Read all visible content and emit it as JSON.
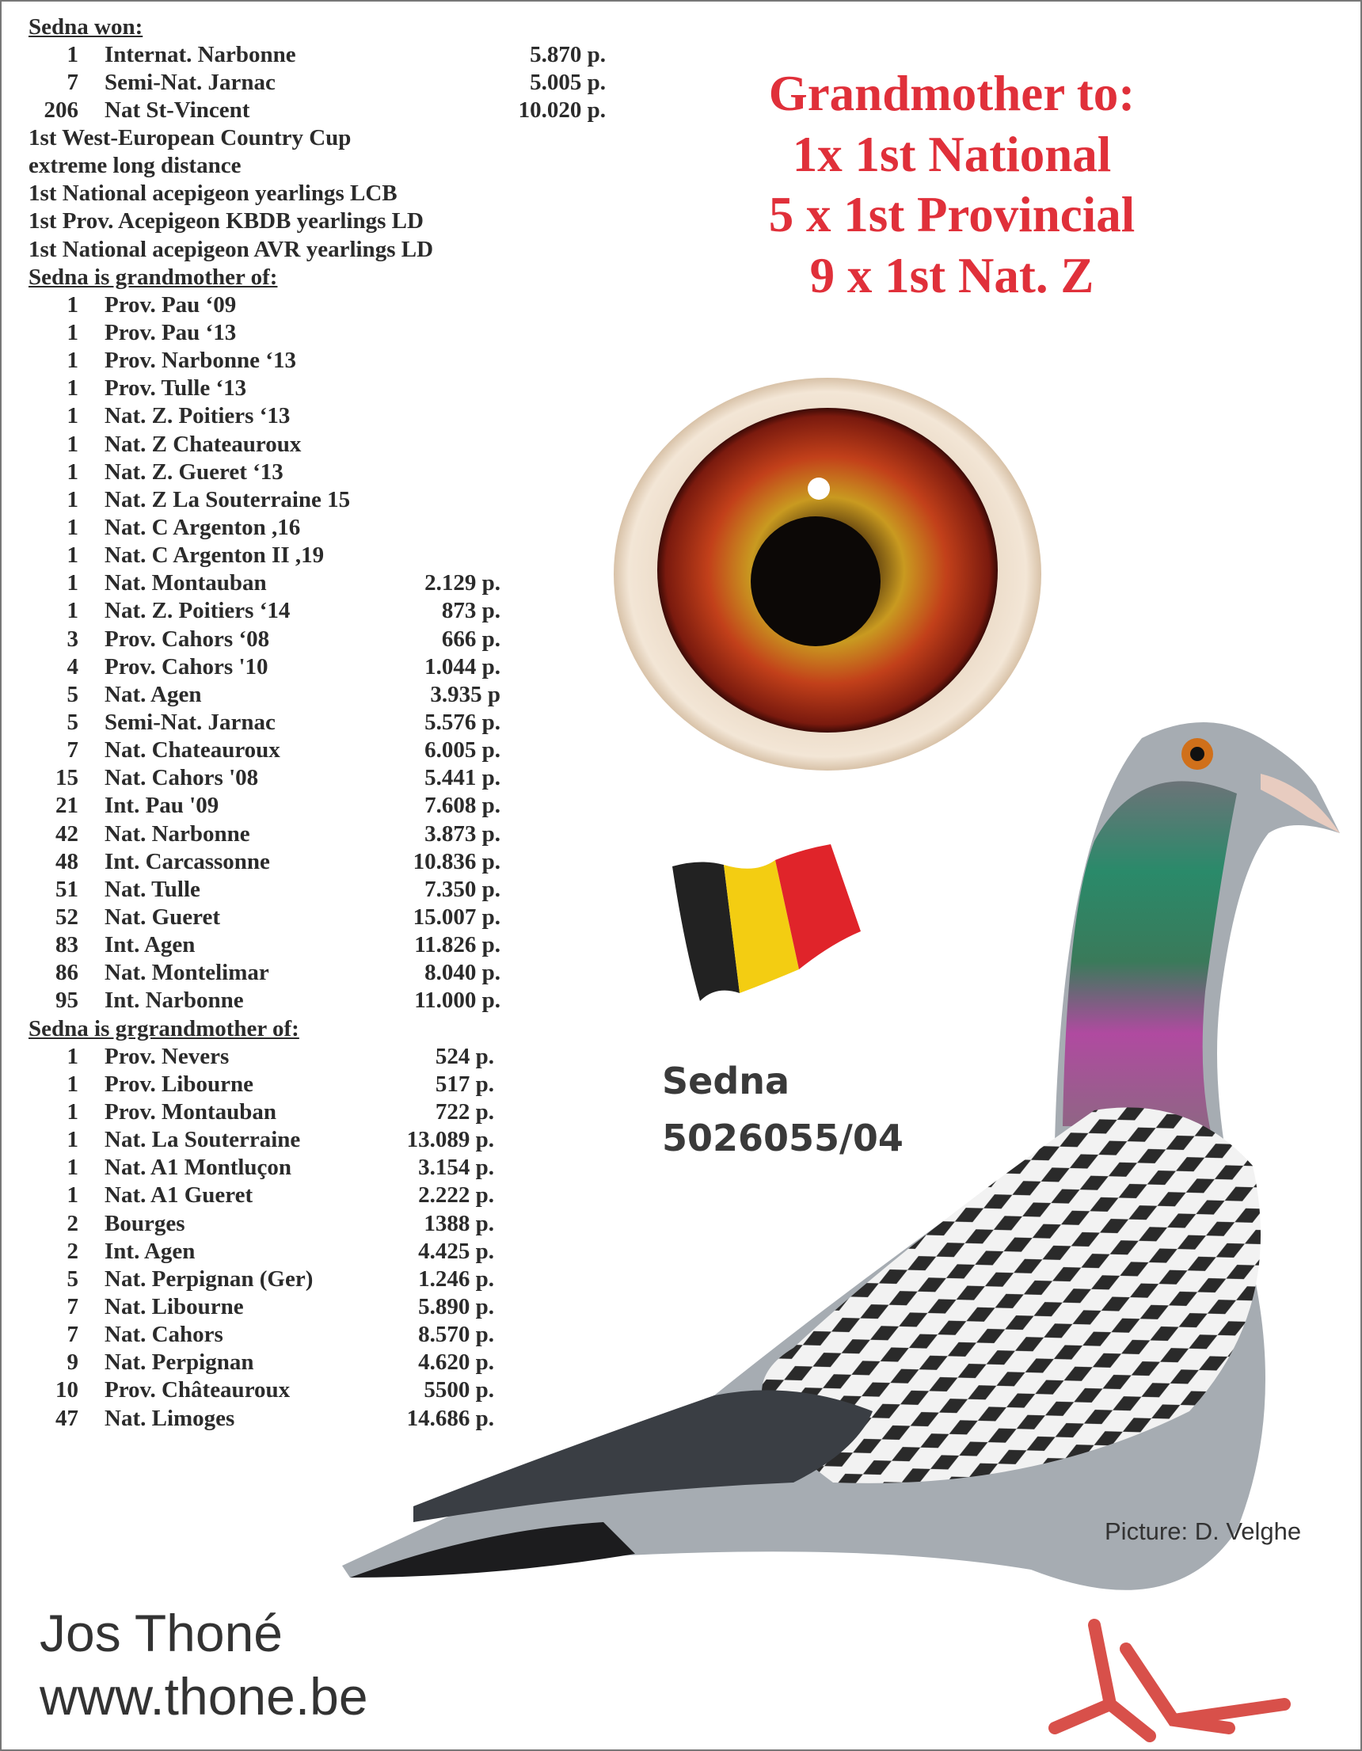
{
  "won": {
    "heading": "Sedna won:",
    "results": [
      {
        "rank": "1",
        "race": "Internat. Narbonne",
        "points": "5.870 p."
      },
      {
        "rank": "7",
        "race": "Semi-Nat. Jarnac",
        "points": "5.005 p."
      },
      {
        "rank": "206",
        "race": "Nat St-Vincent",
        "points": "10.020 p."
      }
    ],
    "titles": [
      "1st West-European Country Cup",
      "extreme long distance",
      "1st National acepigeon yearlings LCB",
      "1st Prov. Acepigeon KBDB yearlings LD",
      "1st National acepigeon AVR  yearlings LD"
    ]
  },
  "grandmother": {
    "heading": "Sedna is grandmother of:",
    "results": [
      {
        "rank": "1",
        "race": "Prov. Pau ‘09",
        "points": ""
      },
      {
        "rank": "1",
        "race": "Prov. Pau ‘13",
        "points": ""
      },
      {
        "rank": "1",
        "race": "Prov. Narbonne ‘13",
        "points": ""
      },
      {
        "rank": "1",
        "race": "Prov. Tulle ‘13",
        "points": ""
      },
      {
        "rank": "1",
        "race": "Nat. Z.  Poitiers ‘13",
        "points": ""
      },
      {
        "rank": "1",
        "race": "Nat. Z Chateauroux",
        "points": ""
      },
      {
        "rank": "1",
        "race": "Nat. Z. Gueret ‘13",
        "points": ""
      },
      {
        "rank": "1",
        "race": "Nat. Z La Souterraine 15",
        "points": ""
      },
      {
        "rank": "1",
        "race": "Nat. C Argenton ,16",
        "points": ""
      },
      {
        "rank": "1",
        "race": "Nat. C Argenton II ,19",
        "points": ""
      },
      {
        "rank": "1",
        "race": "Nat. Montauban",
        "points": "2.129 p."
      },
      {
        "rank": "1",
        "race": "Nat. Z. Poitiers ‘14",
        "points": "873 p."
      },
      {
        "rank": "3",
        "race": "Prov. Cahors ‘08",
        "points": "666 p."
      },
      {
        "rank": "4",
        "race": "Prov. Cahors '10",
        "points": "1.044 p."
      },
      {
        "rank": "5",
        "race": "Nat. Agen",
        "points": "3.935 p"
      },
      {
        "rank": "5",
        "race": "Semi-Nat. Jarnac",
        "points": "5.576 p."
      },
      {
        "rank": "7",
        "race": "Nat. Chateauroux",
        "points": "6.005 p."
      },
      {
        "rank": "15",
        "race": "Nat. Cahors '08",
        "points": "5.441 p."
      },
      {
        "rank": "21",
        "race": "Int. Pau '09",
        "points": "7.608 p."
      },
      {
        "rank": "42",
        "race": "Nat. Narbonne",
        "points": "3.873 p."
      },
      {
        "rank": "48",
        "race": "Int. Carcassonne",
        "points": "10.836 p."
      },
      {
        "rank": "51",
        "race": "Nat. Tulle",
        "points": "7.350 p."
      },
      {
        "rank": "52",
        "race": "Nat. Gueret",
        "points": "15.007 p."
      },
      {
        "rank": "83",
        "race": "Int. Agen",
        "points": "11.826 p."
      },
      {
        "rank": "86",
        "race": "Nat. Montelimar",
        "points": "8.040 p."
      },
      {
        "rank": "95",
        "race": "Int. Narbonne",
        "points": "11.000 p."
      }
    ]
  },
  "great_grandmother": {
    "heading": "Sedna is grgrandmother of:",
    "results": [
      {
        "rank": "1",
        "race": "Prov. Nevers",
        "points": "524 p."
      },
      {
        "rank": "1",
        "race": "Prov. Libourne",
        "points": "517 p."
      },
      {
        "rank": "1",
        "race": "Prov. Montauban",
        "points": "722 p."
      },
      {
        "rank": "1",
        "race": "Nat. La Souterraine",
        "points": "13.089 p."
      },
      {
        "rank": "1",
        "race": "Nat. A1 Montluçon",
        "points": "3.154 p."
      },
      {
        "rank": "1",
        "race": " Nat. A1 Gueret",
        "points": "2.222  p."
      },
      {
        "rank": "2",
        "race": "Bourges",
        "points": "1388  p."
      },
      {
        "rank": "2",
        "race": "Int. Agen",
        "points": "4.425 p."
      },
      {
        "rank": "5",
        "race": "Nat. Perpignan (Ger)",
        "points": "1.246 p."
      },
      {
        "rank": "7",
        "race": "Nat. Libourne",
        "points": "5.890 p."
      },
      {
        "rank": "7",
        "race": "Nat. Cahors",
        "points": "8.570 p."
      },
      {
        "rank": "9",
        "race": "Nat. Perpignan",
        "points": "4.620 p."
      },
      {
        "rank": "10",
        "race": "Prov. Châteauroux",
        "points": "5500 p."
      },
      {
        "rank": "47",
        "race": " Nat. Limoges",
        "points": "14.686 p."
      }
    ]
  },
  "headline": {
    "lines": [
      "Grandmother to:",
      " 1x 1st National",
      "5 x 1st  Provincial",
      "9 x 1st Nat. Z"
    ],
    "color": "#e0303a"
  },
  "pigeon": {
    "name": "Sedna",
    "ring": "5026055/04"
  },
  "credit": "Picture: D. Velghe",
  "footer": {
    "breeder": "Jos Thoné",
    "website": "www.thone.be"
  },
  "flag": {
    "country": "Belgium",
    "colors": [
      "#1a1a1a",
      "#f5d000",
      "#e02020"
    ]
  },
  "icons": [
    "pigeon-eye-photo",
    "belgian-flag",
    "pigeon-photo"
  ]
}
